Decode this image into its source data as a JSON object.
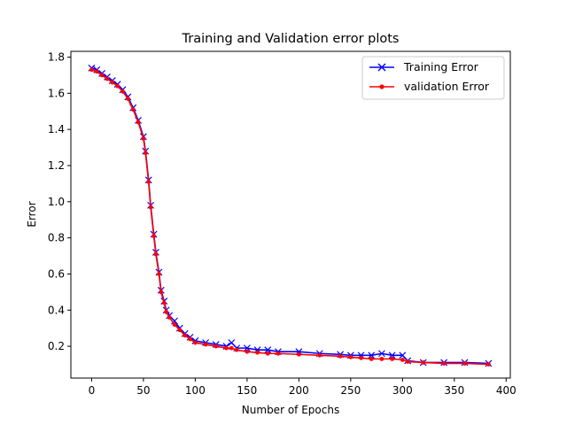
{
  "chart_data": {
    "type": "line",
    "title": "Training and Validation error plots",
    "xlabel": "Number of Epochs",
    "ylabel": "Error",
    "xlim": [
      -20,
      404
    ],
    "ylim": [
      0.024,
      1.832
    ],
    "xticks": [
      0,
      50,
      100,
      150,
      200,
      250,
      300,
      350,
      400
    ],
    "yticks": [
      0.2,
      0.4,
      0.6,
      0.8,
      1.0,
      1.2,
      1.4,
      1.6,
      1.8
    ],
    "ytick_labels": [
      "0.2",
      "0.4",
      "0.6",
      "0.8",
      "1.0",
      "1.2",
      "1.4",
      "1.6",
      "1.8"
    ],
    "grid": false,
    "legend_position": "top-right",
    "series": [
      {
        "name": "Training Error",
        "color": "#0000ff",
        "marker": "x",
        "x": [
          0,
          5,
          10,
          15,
          20,
          25,
          30,
          35,
          40,
          45,
          50,
          52,
          55,
          57,
          60,
          62,
          65,
          67,
          70,
          72,
          75,
          80,
          85,
          90,
          95,
          100,
          110,
          120,
          130,
          135,
          140,
          150,
          160,
          170,
          180,
          200,
          220,
          240,
          250,
          260,
          270,
          280,
          290,
          300,
          305,
          320,
          340,
          360,
          383
        ],
        "y": [
          1.74,
          1.73,
          1.71,
          1.69,
          1.67,
          1.65,
          1.62,
          1.58,
          1.52,
          1.45,
          1.36,
          1.28,
          1.12,
          0.98,
          0.82,
          0.72,
          0.61,
          0.51,
          0.45,
          0.4,
          0.37,
          0.34,
          0.3,
          0.27,
          0.25,
          0.23,
          0.22,
          0.21,
          0.2,
          0.22,
          0.19,
          0.19,
          0.18,
          0.18,
          0.17,
          0.17,
          0.16,
          0.155,
          0.15,
          0.15,
          0.15,
          0.16,
          0.15,
          0.15,
          0.12,
          0.11,
          0.11,
          0.11,
          0.105
        ]
      },
      {
        "name": "validation Error",
        "color": "#ff0000",
        "marker": "o",
        "x": [
          0,
          5,
          10,
          15,
          20,
          25,
          30,
          35,
          40,
          45,
          50,
          52,
          55,
          57,
          60,
          62,
          65,
          67,
          70,
          72,
          75,
          80,
          85,
          90,
          95,
          100,
          110,
          120,
          130,
          135,
          140,
          150,
          160,
          170,
          180,
          200,
          220,
          240,
          250,
          260,
          270,
          280,
          290,
          300,
          305,
          320,
          340,
          360,
          383
        ],
        "y": [
          1.73,
          1.72,
          1.7,
          1.68,
          1.66,
          1.64,
          1.61,
          1.57,
          1.51,
          1.44,
          1.35,
          1.27,
          1.11,
          0.97,
          0.81,
          0.71,
          0.6,
          0.5,
          0.44,
          0.39,
          0.36,
          0.32,
          0.29,
          0.26,
          0.24,
          0.22,
          0.21,
          0.2,
          0.19,
          0.19,
          0.18,
          0.17,
          0.165,
          0.16,
          0.16,
          0.155,
          0.15,
          0.145,
          0.14,
          0.135,
          0.13,
          0.13,
          0.13,
          0.125,
          0.115,
          0.11,
          0.105,
          0.105,
          0.1
        ]
      }
    ]
  }
}
